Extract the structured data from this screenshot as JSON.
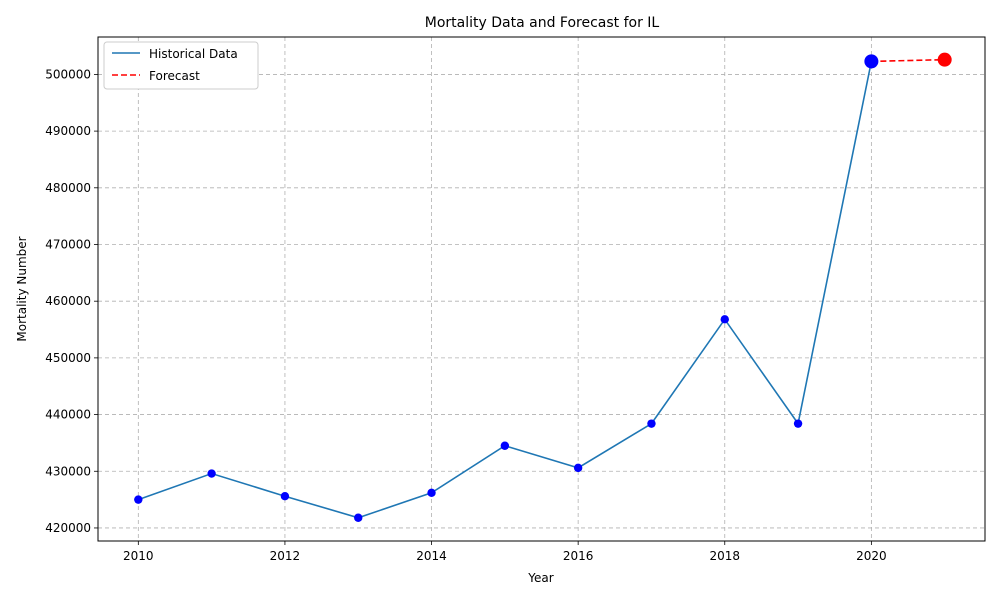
{
  "chart_data": {
    "type": "line",
    "title": "Mortality Data and Forecast for IL",
    "xlabel": "Year",
    "ylabel": "Mortality Number",
    "xlim": [
      2009.45,
      2021.55
    ],
    "ylim": [
      417700,
      506600
    ],
    "x_ticks": [
      2010,
      2012,
      2014,
      2016,
      2018,
      2020
    ],
    "y_ticks": [
      420000,
      430000,
      440000,
      450000,
      460000,
      470000,
      480000,
      490000,
      500000
    ],
    "grid": true,
    "legend_position": "top-left",
    "series": [
      {
        "name": "Historical Data",
        "style": "solid",
        "color": "#1f77b4",
        "marker_color": "#0000ff",
        "x": [
          2010,
          2011,
          2012,
          2013,
          2014,
          2015,
          2016,
          2017,
          2018,
          2019,
          2020
        ],
        "y": [
          425000,
          429600,
          425600,
          421800,
          426200,
          434500,
          430600,
          438400,
          456800,
          438400,
          502300
        ]
      },
      {
        "name": "Forecast",
        "style": "dashed",
        "color": "#ff0000",
        "x": [
          2020,
          2021
        ],
        "y": [
          502300,
          502600
        ]
      }
    ],
    "highlight_points": [
      {
        "x": 2020,
        "y": 502300,
        "color": "#0000ff"
      },
      {
        "x": 2021,
        "y": 502600,
        "color": "#ff0000"
      }
    ]
  }
}
